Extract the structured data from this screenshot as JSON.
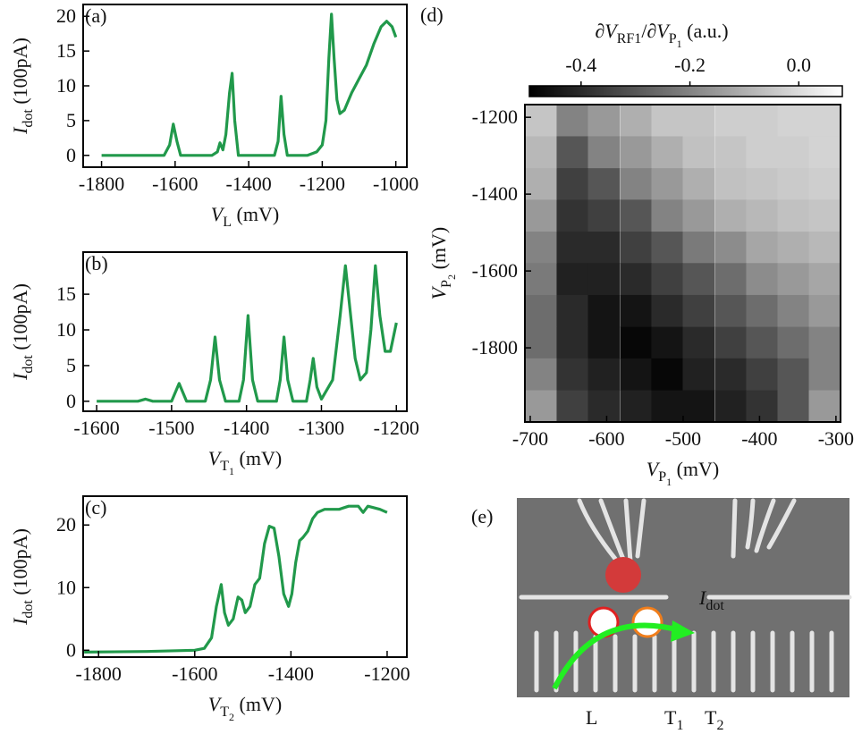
{
  "chart_data": [
    {
      "type": "line",
      "label": "(a)",
      "color": "#21994b",
      "ylabel": [
        {
          "text": "I",
          "style": "it"
        },
        {
          "text": "dot",
          "style": "sub"
        },
        {
          "text": " (100pA)",
          "style": "n"
        }
      ],
      "xlabel": [
        {
          "text": "V",
          "style": "it"
        },
        {
          "text": "L",
          "style": "sub"
        },
        {
          "text": " (mV)",
          "style": "n"
        }
      ],
      "xlim": [
        -1850,
        -970
      ],
      "xticks": [
        -1800,
        -1600,
        -1400,
        -1200,
        -1000
      ],
      "ylim": [
        -1.7,
        21.7
      ],
      "yticks": [
        0,
        5,
        10,
        15,
        20
      ],
      "x": [
        -1800,
        -1700,
        -1630,
        -1615,
        -1605,
        -1595,
        -1585,
        -1500,
        -1485,
        -1478,
        -1470,
        -1462,
        -1452,
        -1445,
        -1438,
        -1428,
        -1400,
        -1330,
        -1320,
        -1312,
        -1304,
        -1295,
        -1240,
        -1215,
        -1200,
        -1190,
        -1182,
        -1175,
        -1168,
        -1160,
        -1152,
        -1140,
        -1120,
        -1100,
        -1080,
        -1060,
        -1040,
        -1025,
        -1010,
        -1000
      ],
      "values": [
        0,
        0,
        0,
        1.5,
        4.5,
        2,
        0,
        0,
        0.5,
        1.8,
        0.8,
        3,
        9,
        11.8,
        5,
        0,
        0,
        0,
        2,
        8.5,
        3,
        0,
        0,
        0.5,
        1.5,
        5,
        14,
        20.3,
        14,
        8,
        6,
        6.5,
        9,
        11,
        13,
        16,
        18.5,
        19.3,
        18.5,
        17
      ]
    },
    {
      "type": "line",
      "label": "(b)",
      "color": "#21994b",
      "ylabel": [
        {
          "text": "I",
          "style": "it"
        },
        {
          "text": "dot",
          "style": "sub"
        },
        {
          "text": " (100pA)",
          "style": "n"
        }
      ],
      "xlabel": [
        {
          "text": "V",
          "style": "it"
        },
        {
          "text": "T",
          "style": "sub"
        },
        {
          "text": "1",
          "style": "subsub"
        },
        {
          "text": " (mV)",
          "style": "n"
        }
      ],
      "xlim": [
        -1618,
        -1186
      ],
      "xticks": [
        -1600,
        -1500,
        -1400,
        -1300,
        -1200
      ],
      "ylim": [
        -1.4,
        20.9
      ],
      "yticks": [
        0,
        5,
        10,
        15
      ],
      "x": [
        -1600,
        -1545,
        -1535,
        -1525,
        -1500,
        -1490,
        -1480,
        -1455,
        -1448,
        -1442,
        -1436,
        -1428,
        -1410,
        -1404,
        -1398,
        -1392,
        -1385,
        -1360,
        -1355,
        -1350,
        -1345,
        -1338,
        -1320,
        -1315,
        -1311,
        -1306,
        -1300,
        -1285,
        -1275,
        -1268,
        -1262,
        -1255,
        -1248,
        -1240,
        -1234,
        -1228,
        -1222,
        -1215,
        -1208,
        -1200
      ],
      "values": [
        0,
        0,
        0.3,
        0,
        0,
        2.5,
        0,
        0,
        3,
        9,
        3,
        0,
        0,
        3,
        12,
        3,
        0,
        0,
        3,
        9,
        3,
        0,
        0,
        3,
        6,
        2,
        0.3,
        3,
        12,
        19,
        13,
        6,
        3,
        4,
        10,
        19,
        12,
        7,
        7,
        11
      ]
    },
    {
      "type": "line",
      "label": "(c)",
      "color": "#21994b",
      "ylabel": [
        {
          "text": "I",
          "style": "it"
        },
        {
          "text": "dot",
          "style": "sub"
        },
        {
          "text": " (100pA)",
          "style": "n"
        }
      ],
      "xlabel": [
        {
          "text": "V",
          "style": "it"
        },
        {
          "text": "T",
          "style": "sub"
        },
        {
          "text": "2",
          "style": "subsub"
        },
        {
          "text": " (mV)",
          "style": "n"
        }
      ],
      "xlim": [
        -1832,
        -1159
      ],
      "xticks": [
        -1800,
        -1600,
        -1400,
        -1200
      ],
      "ylim": [
        -1.1,
        24.6
      ],
      "yticks": [
        0,
        10,
        20
      ],
      "x": [
        -1830,
        -1700,
        -1600,
        -1580,
        -1565,
        -1555,
        -1545,
        -1538,
        -1530,
        -1520,
        -1510,
        -1502,
        -1495,
        -1485,
        -1475,
        -1465,
        -1455,
        -1445,
        -1435,
        -1425,
        -1415,
        -1405,
        -1398,
        -1390,
        -1382,
        -1375,
        -1365,
        -1355,
        -1345,
        -1330,
        -1300,
        -1280,
        -1260,
        -1250,
        -1240,
        -1230,
        -1215,
        -1200
      ],
      "values": [
        -0.3,
        -0.2,
        0,
        0.3,
        2,
        7,
        10.5,
        6,
        4,
        5,
        8.5,
        8,
        6,
        7,
        10.5,
        11.5,
        17,
        19.8,
        19.5,
        15,
        9,
        7,
        9,
        14,
        17.5,
        18,
        19,
        21,
        22,
        22.5,
        22.5,
        23,
        23,
        22,
        23,
        22.8,
        22.5,
        22
      ]
    },
    {
      "type": "heatmap",
      "label": "(d)",
      "xlabel": [
        {
          "text": "V",
          "style": "it"
        },
        {
          "text": "P",
          "style": "sub"
        },
        {
          "text": "1",
          "style": "subsub"
        },
        {
          "text": " (mV)",
          "style": "n"
        }
      ],
      "ylabel": [
        {
          "text": "V",
          "style": "it"
        },
        {
          "text": "P",
          "style": "sub"
        },
        {
          "text": "2",
          "style": "subsub"
        },
        {
          "text": " (mV)",
          "style": "n"
        }
      ],
      "colorbar_label": [
        {
          "text": "∂",
          "style": "n"
        },
        {
          "text": "V",
          "style": "it"
        },
        {
          "text": "RF1",
          "style": "sub"
        },
        {
          "text": "/∂",
          "style": "n"
        },
        {
          "text": "V",
          "style": "it"
        },
        {
          "text": "P",
          "style": "sub"
        },
        {
          "text": "1",
          "style": "subsub"
        },
        {
          "text": " (a.u.)",
          "style": "n"
        }
      ],
      "colormap": [
        "#000000",
        "#ffffff"
      ],
      "clim": [
        -0.495,
        0.08
      ],
      "cticks": [
        -0.4,
        -0.2,
        {
          "value": 0,
          "label": "0.0"
        }
      ],
      "xlim": [
        -707,
        -294
      ],
      "xticks": [
        -700,
        -600,
        -500,
        -400,
        -300
      ],
      "ylim": [
        -1993,
        -1167
      ],
      "yticks": [
        -1200,
        -1400,
        -1600,
        -1800
      ],
      "x": [
        -686,
        -645,
        -604,
        -562,
        -521,
        -480,
        -438,
        -397,
        -356,
        -315
      ],
      "y": [
        -1208,
        -1291,
        -1374,
        -1456,
        -1539,
        -1621,
        -1704,
        -1787,
        -1869,
        -1952
      ],
      "z": [
        [
          -0.05,
          -0.2,
          -0.15,
          -0.1,
          -0.05,
          -0.05,
          -0.03,
          -0.03,
          -0.02,
          -0.02
        ],
        [
          -0.08,
          -0.3,
          -0.2,
          -0.15,
          -0.1,
          -0.06,
          -0.05,
          -0.03,
          -0.03,
          -0.02
        ],
        [
          -0.1,
          -0.35,
          -0.3,
          -0.2,
          -0.15,
          -0.1,
          -0.06,
          -0.05,
          -0.04,
          -0.03
        ],
        [
          -0.15,
          -0.38,
          -0.35,
          -0.3,
          -0.2,
          -0.15,
          -0.1,
          -0.08,
          -0.06,
          -0.05
        ],
        [
          -0.2,
          -0.4,
          -0.4,
          -0.35,
          -0.3,
          -0.22,
          -0.18,
          -0.12,
          -0.1,
          -0.08
        ],
        [
          -0.22,
          -0.42,
          -0.42,
          -0.4,
          -0.35,
          -0.3,
          -0.25,
          -0.18,
          -0.15,
          -0.12
        ],
        [
          -0.25,
          -0.4,
          -0.45,
          -0.45,
          -0.4,
          -0.35,
          -0.3,
          -0.25,
          -0.2,
          -0.15
        ],
        [
          -0.25,
          -0.4,
          -0.45,
          -0.48,
          -0.45,
          -0.4,
          -0.35,
          -0.3,
          -0.25,
          -0.2
        ],
        [
          -0.2,
          -0.38,
          -0.42,
          -0.45,
          -0.48,
          -0.42,
          -0.4,
          -0.35,
          -0.3,
          -0.2
        ],
        [
          -0.15,
          -0.35,
          -0.4,
          -0.42,
          -0.45,
          -0.45,
          -0.42,
          -0.38,
          -0.3,
          -0.15
        ]
      ]
    }
  ],
  "figure": {
    "label": "(e)",
    "current": [
      {
        "text": "I",
        "style": "it"
      },
      {
        "text": "dot",
        "style": "sub"
      }
    ],
    "gates": [
      [
        {
          "text": "L",
          "style": "n"
        }
      ],
      [
        {
          "text": "T",
          "style": "n"
        },
        {
          "text": "1",
          "style": "sub"
        }
      ],
      [
        {
          "text": "T",
          "style": "n"
        },
        {
          "text": "2",
          "style": "sub"
        }
      ]
    ]
  }
}
